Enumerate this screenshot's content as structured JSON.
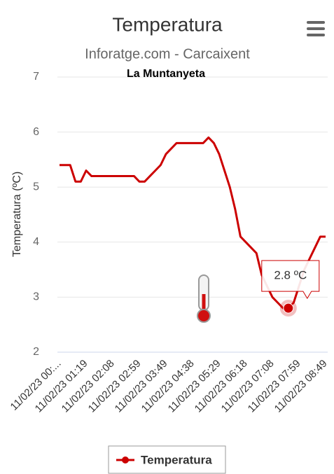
{
  "chart_data": {
    "type": "line",
    "title": "Temperatura",
    "subtitle": "Inforatge.com - Carcaixent",
    "caption": "La Muntanyeta",
    "y_label": "Temperatura (ºC)",
    "categories": [
      "11/02/23 00:...",
      null,
      null,
      null,
      null,
      "11/02/23 01:19",
      null,
      null,
      null,
      null,
      "11/02/23 02:08",
      null,
      null,
      null,
      null,
      "11/02/23 02:59",
      null,
      null,
      null,
      null,
      "11/02/23 03:49",
      null,
      null,
      null,
      null,
      "11/02/23 04:38",
      null,
      null,
      null,
      null,
      "11/02/23 05:29",
      null,
      null,
      null,
      null,
      "11/02/23 06:18",
      null,
      null,
      null,
      null,
      "11/02/23 07:08",
      null,
      null,
      null,
      null,
      "11/02/23 07:59",
      null,
      null,
      null,
      null,
      "11/02/23 08:49"
    ],
    "series": [
      {
        "name": "Temperatura",
        "color": "#cc0000",
        "values": [
          5.4,
          5.4,
          5.4,
          5.1,
          5.1,
          5.3,
          5.2,
          5.2,
          5.2,
          5.2,
          5.2,
          5.2,
          5.2,
          5.2,
          5.2,
          5.1,
          5.1,
          5.2,
          5.3,
          5.4,
          5.6,
          5.7,
          5.8,
          5.8,
          5.8,
          5.8,
          5.8,
          5.8,
          5.9,
          5.8,
          5.6,
          5.3,
          5.0,
          4.6,
          4.1,
          4.0,
          3.9,
          3.8,
          3.4,
          3.2,
          3.0,
          2.9,
          2.8,
          2.8,
          2.9,
          3.2,
          3.5,
          3.7,
          3.9,
          4.1,
          4.1
        ],
        "value_labels": [
          null,
          null,
          null,
          null,
          null,
          null,
          null,
          null,
          null,
          null,
          null,
          null,
          null,
          null,
          null,
          null,
          null,
          null,
          null,
          null,
          null,
          null,
          null,
          null,
          null,
          null,
          null,
          null,
          null,
          null,
          null,
          null,
          null,
          null,
          null,
          null,
          null,
          null,
          null,
          null,
          null,
          null,
          null,
          "2.8 ºC",
          null,
          null,
          null,
          null,
          null,
          null,
          null
        ]
      }
    ],
    "ylim": [
      2,
      7
    ],
    "yticks": [
      2,
      3,
      4,
      5,
      6,
      7
    ],
    "grid": true
  }
}
